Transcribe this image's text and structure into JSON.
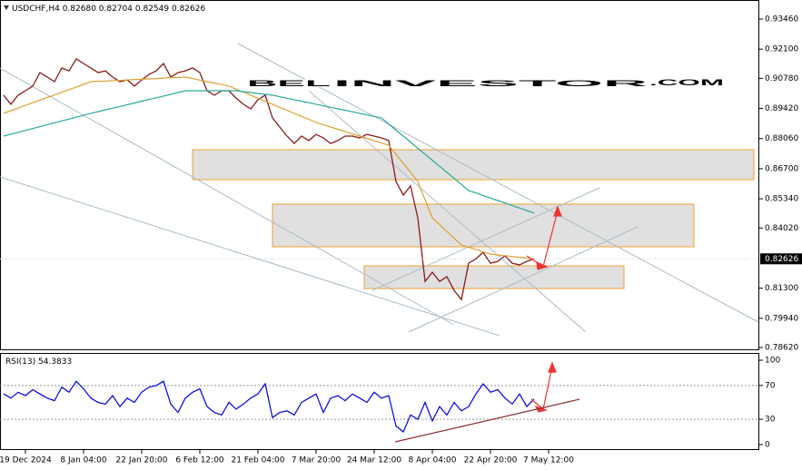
{
  "chart_data": [
    {
      "type": "line",
      "symbol": "USDCHF,H4",
      "ohlc": [
        {
          "value": 0.8268,
          "label": "0.82680"
        },
        0.82704,
        0.82549,
        0.82626
      ],
      "watermark": {
        "bel": "BEL",
        "investor": "INVESTOR",
        "com": ".COM"
      },
      "ylim": [
        0.78497,
        0.94321
      ],
      "yticks": [
        {
          "value": 0.9346,
          "label": "0.93460"
        },
        {
          "value": 0.921,
          "label": "0.92100"
        },
        {
          "value": 0.9078,
          "label": "0.90780"
        },
        {
          "value": 0.8942,
          "label": "0.89420"
        },
        {
          "value": 0.8806,
          "label": "0.88060"
        },
        {
          "value": 0.867,
          "label": "0.86700"
        },
        {
          "value": 0.8534,
          "label": "0.85340"
        },
        {
          "value": 0.8402,
          "label": "0.84020"
        },
        {
          "value": 0.813,
          "label": "0.81300"
        },
        {
          "value": 0.7994,
          "label": "0.79940"
        },
        {
          "value": 0.7862,
          "label": "0.78620"
        }
      ],
      "current_price": 0.82626,
      "series": [
        {
          "name": "USDCHF",
          "color": "#8b1a1a",
          "values": [
            0.9002,
            0.8961,
            0.9002,
            0.9022,
            0.9043,
            0.9104,
            0.9084,
            0.9063,
            0.9125,
            0.9112,
            0.9166,
            0.9145,
            0.9125,
            0.9104,
            0.9112,
            0.9084,
            0.9063,
            0.9071,
            0.9043,
            0.9071,
            0.9096,
            0.9112,
            0.9145,
            0.9084,
            0.9104,
            0.9112,
            0.9125,
            0.9104,
            0.9022,
            0.9002,
            0.9022,
            0.9022,
            0.8989,
            0.8961,
            0.894,
            0.8981,
            0.9002,
            0.8899,
            0.8858,
            0.8817,
            0.8784,
            0.8817,
            0.8797,
            0.8825,
            0.8809,
            0.8784,
            0.8797,
            0.8817,
            0.8817,
            0.8809,
            0.8825,
            0.8817,
            0.8809,
            0.8797,
            0.8612,
            0.8551,
            0.8592,
            0.8448,
            0.8161,
            0.8202,
            0.8161,
            0.8182,
            0.812,
            0.8079,
            0.8243,
            0.8263,
            0.8292,
            0.8243,
            0.8251,
            0.8276,
            0.8243,
            0.8235,
            0.8251,
            0.8263,
            null,
            null
          ]
        },
        {
          "name": "MA fast",
          "color": "#e0a030",
          "values": [
            0.892,
            0.8932,
            0.8944,
            0.8956,
            0.8968,
            0.898,
            0.8992,
            0.9003,
            0.9015,
            0.9027,
            0.9039,
            0.9051,
            0.9063,
            0.9065,
            0.9066,
            0.9068,
            0.9069,
            0.9071,
            0.9073,
            0.9074,
            0.9076,
            0.9077,
            0.9079,
            0.9081,
            0.9082,
            0.9084,
            0.9077,
            0.907,
            0.9063,
            0.9057,
            0.905,
            0.9043,
            0.9029,
            0.9016,
            0.9002,
            0.8988,
            0.8975,
            0.8961,
            0.8947,
            0.8934,
            0.892,
            0.8906,
            0.8893,
            0.8879,
            0.8869,
            0.8858,
            0.8848,
            0.8838,
            0.8827,
            0.8817,
            0.8807,
            0.8796,
            0.8786,
            0.8776,
            0.8735,
            0.8694,
            0.8653,
            0.8612,
            0.853,
            0.8448,
            0.8417,
            0.8386,
            0.8356,
            0.8325,
            0.8315,
            0.8305,
            0.8294,
            0.8284,
            0.828,
            0.8277,
            0.8273,
            0.827,
            0.8266,
            0.8263,
            null,
            null
          ]
        },
        {
          "name": "MA slow",
          "color": "#2aa89a",
          "values": [
            0.8817,
            0.8826,
            0.8834,
            0.8843,
            0.8851,
            0.886,
            0.8869,
            0.8877,
            0.8886,
            0.8894,
            0.8903,
            0.8911,
            0.892,
            0.8928,
            0.8936,
            0.8943,
            0.8951,
            0.8959,
            0.8967,
            0.8975,
            0.8983,
            0.899,
            0.8998,
            0.9006,
            0.9014,
            0.9022,
            0.9022,
            0.9022,
            0.9022,
            0.9022,
            0.9022,
            0.9022,
            0.9022,
            0.9018,
            0.9014,
            0.901,
            0.9006,
            0.9002,
            0.8995,
            0.8988,
            0.8982,
            0.8975,
            0.8968,
            0.8961,
            0.8954,
            0.8947,
            0.894,
            0.8934,
            0.8927,
            0.892,
            0.8913,
            0.8906,
            0.8899,
            0.8872,
            0.8844,
            0.8817,
            0.879,
            0.8762,
            0.8735,
            0.8708,
            0.8681,
            0.8653,
            0.8626,
            0.8599,
            0.8571,
            0.856,
            0.8549,
            0.8537,
            0.8526,
            0.8515,
            0.8503,
            0.8492,
            0.8481,
            0.8469,
            null,
            null
          ]
        }
      ]
    },
    {
      "type": "line",
      "label": "RSI(13)",
      "current": 54.3833,
      "ylim": [
        -6.5,
        108.6
      ],
      "yticks": [
        0,
        30,
        70,
        100
      ],
      "levels": [
        30,
        70
      ],
      "categories": [
        null,
        null,
        null,
        "19 Dec 2024",
        null,
        null,
        null,
        null,
        null,
        null,
        null,
        "8 Jan 04:00",
        null,
        null,
        null,
        null,
        null,
        null,
        null,
        "22 Jan 20:00",
        null,
        null,
        null,
        null,
        null,
        null,
        null,
        "6 Feb 12:00",
        null,
        null,
        null,
        null,
        null,
        null,
        null,
        "21 Feb 04:00",
        null,
        null,
        null,
        null,
        null,
        null,
        null,
        "7 Mar 20:00",
        null,
        null,
        null,
        null,
        null,
        null,
        null,
        "24 Mar 12:00",
        null,
        null,
        null,
        null,
        null,
        null,
        null,
        "8 Apr 04:00",
        null,
        null,
        null,
        null,
        null,
        null,
        null,
        "22 Apr 20:00",
        null,
        null,
        null,
        null,
        null,
        null,
        null,
        "7 May 12:00"
      ],
      "series": [
        {
          "name": "RSI",
          "color": "#0000e0",
          "values": [
            60,
            55,
            62,
            58,
            65,
            60,
            55,
            52,
            68,
            62,
            75,
            66,
            55,
            50,
            48,
            58,
            45,
            55,
            50,
            62,
            68,
            70,
            75,
            48,
            38,
            55,
            62,
            66,
            45,
            38,
            35,
            50,
            42,
            48,
            55,
            60,
            72,
            32,
            38,
            40,
            35,
            50,
            55,
            60,
            38,
            55,
            58,
            52,
            60,
            55,
            50,
            62,
            55,
            58,
            22,
            15,
            35,
            30,
            50,
            28,
            45,
            35,
            50,
            40,
            45,
            60,
            72,
            62,
            65,
            55,
            48,
            60,
            45,
            54,
            null,
            null
          ]
        }
      ]
    }
  ]
}
